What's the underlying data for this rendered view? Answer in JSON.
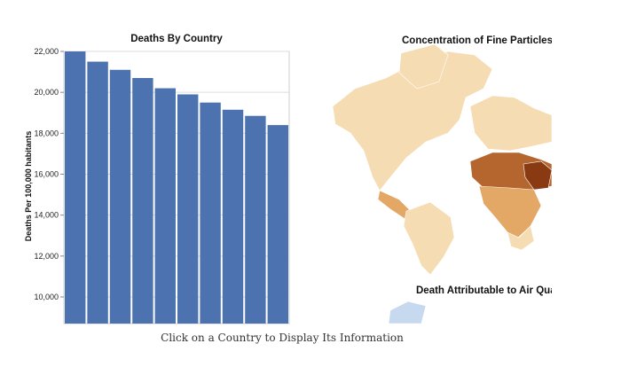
{
  "chart_data": {
    "type": "bar",
    "title": "Deaths By Country",
    "ylabel": "Deaths Per 100,000 habitants",
    "xlabel": "",
    "categories": [
      "",
      "",
      "",
      "",
      "",
      "",
      "",
      "",
      "",
      ""
    ],
    "values": [
      22000,
      21500,
      21100,
      20700,
      20200,
      19900,
      19500,
      19150,
      18850,
      18400
    ],
    "ylim": [
      8700,
      22000
    ],
    "yticks": [
      10000,
      12000,
      14000,
      16000,
      18000,
      20000,
      22000
    ],
    "ytick_labels": [
      "10,000",
      "12,000",
      "14,000",
      "16,000",
      "18,000",
      "20,000",
      "22,000"
    ],
    "grid": true,
    "bar_color": "#4c72b0"
  },
  "map": {
    "title": "Concentration of Fine Particles M",
    "subtitle": "Death Attributable to Air Qual"
  },
  "caption": "Click on a Country to Display Its Information",
  "colors": {
    "map_light": "#f5dcb2",
    "map_mid": "#e3a766",
    "map_dark": "#b5652e",
    "map_darkest": "#8a3a12",
    "map_blue": "#c7d9ee"
  }
}
